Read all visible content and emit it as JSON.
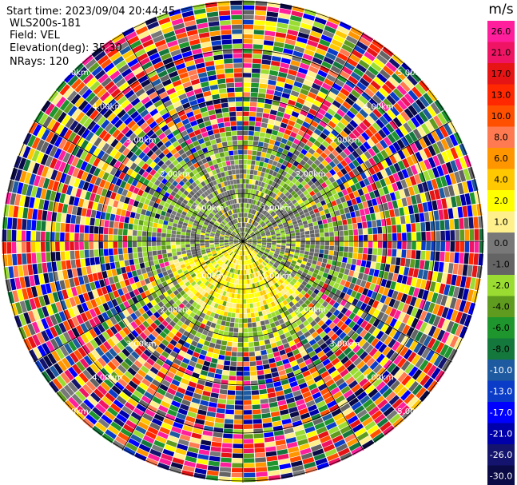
{
  "header": {
    "start_time": "Start time: 2023/09/04 20:44:45",
    "station": "WLS200s-181",
    "field": "Field: VEL",
    "elevation": "Elevation(deg): 35.30",
    "nrays": "NRays: 120"
  },
  "range_labels": [
    "1.00km",
    "2.00km",
    "3.00km",
    "4.00km",
    "5.00km"
  ],
  "colorbar": {
    "unit": "m/s",
    "ticks": [
      "26.0",
      "21.0",
      "17.0",
      "13.0",
      "10.0",
      "8.0",
      "6.0",
      "4.0",
      "2.0",
      "1.0",
      "0.0",
      "-1.0",
      "-2.0",
      "-4.0",
      "-6.0",
      "-8.0",
      "-10.0",
      "-13.0",
      "-17.0",
      "-21.0",
      "-26.0",
      "-30.0"
    ],
    "colors": [
      "#ff1e9b",
      "#f01464",
      "#e61414",
      "#ff2800",
      "#ff5000",
      "#ff7a50",
      "#ff9600",
      "#ffc800",
      "#ffff00",
      "#fff08c",
      "#787878",
      "#646464",
      "#9bdc32",
      "#5f9b1e",
      "#1e962d",
      "#14783c",
      "#1e5aa0",
      "#0a3cc8",
      "#0000ff",
      "#0000aa",
      "#14146e",
      "#0a0a46"
    ]
  }
}
